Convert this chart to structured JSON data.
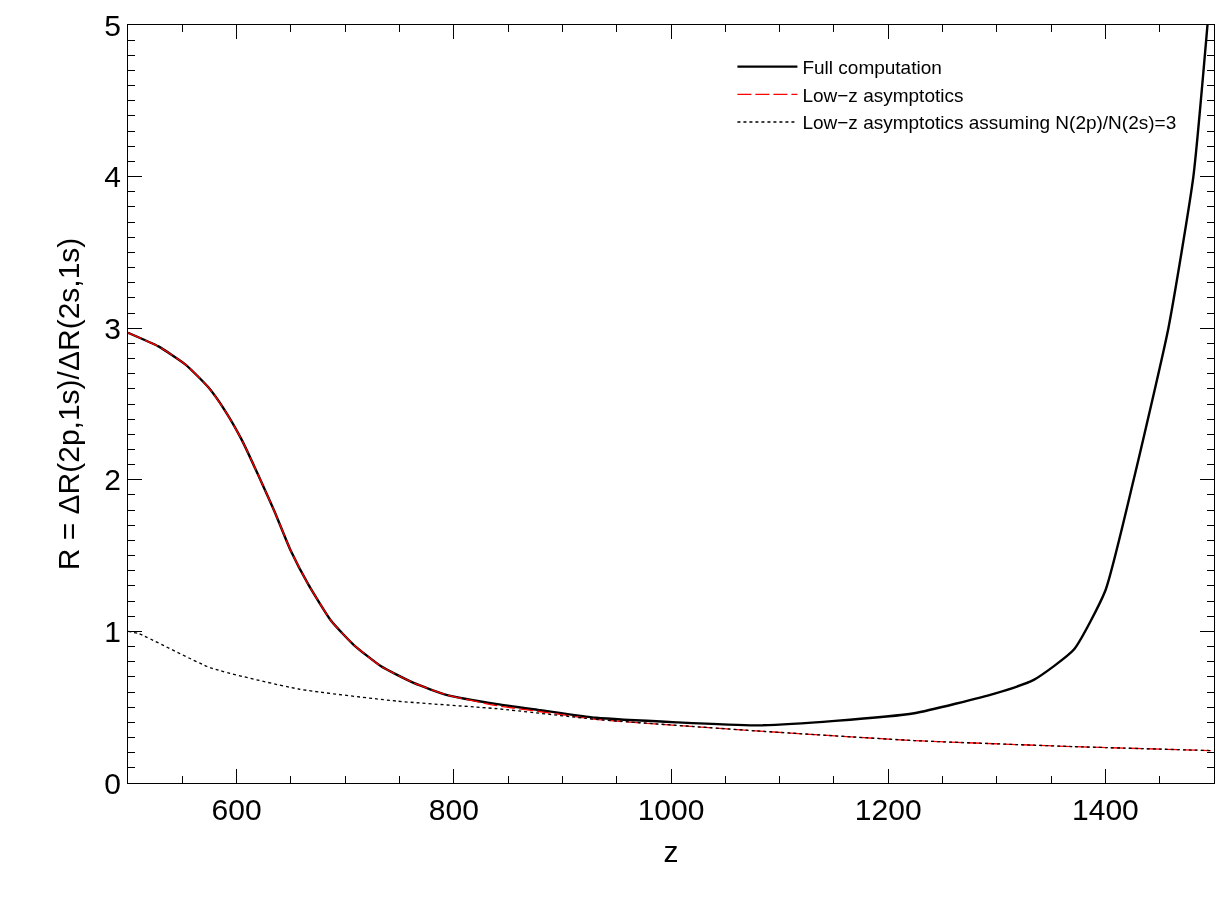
{
  "chart_data": {
    "type": "line",
    "xlabel": "z",
    "ylabel": "R = ΔR(2p,1s)/ΔR(2s,1s)",
    "xlim": [
      500,
      1500
    ],
    "ylim": [
      0,
      5
    ],
    "xticks": [
      600,
      800,
      1000,
      1200,
      1400
    ],
    "yticks": [
      0,
      1,
      2,
      3,
      4,
      5
    ],
    "legend": "top right",
    "series": [
      {
        "name": "Full computation",
        "color": "#000000",
        "line_style": "solid",
        "x": [
          500,
          528,
          553,
          574,
          589,
          605,
          620,
          635,
          650,
          666,
          687,
          708,
          733,
          763,
          794,
          840,
          880,
          931,
          1005,
          1078,
          1151,
          1224,
          1298,
          1334,
          1371,
          1400,
          1426,
          1458,
          1481,
          1494
        ],
        "values": [
          2.97,
          2.88,
          2.76,
          2.61,
          2.46,
          2.26,
          2.03,
          1.79,
          1.53,
          1.31,
          1.07,
          0.91,
          0.77,
          0.66,
          0.58,
          0.52,
          0.48,
          0.43,
          0.4,
          0.38,
          0.41,
          0.46,
          0.59,
          0.68,
          0.88,
          1.27,
          2.0,
          3.0,
          4.0,
          5.0
        ]
      },
      {
        "name": "Low−z asymptotics",
        "color": "#ff0000",
        "line_style": "dashed",
        "x": [
          500,
          528,
          553,
          574,
          589,
          605,
          620,
          635,
          650,
          666,
          687,
          708,
          733,
          763,
          794,
          840,
          880,
          931,
          1078,
          1224,
          1371,
          1497
        ],
        "values": [
          2.97,
          2.88,
          2.76,
          2.61,
          2.46,
          2.26,
          2.03,
          1.79,
          1.53,
          1.31,
          1.07,
          0.91,
          0.77,
          0.66,
          0.58,
          0.51,
          0.47,
          0.42,
          0.344,
          0.28,
          0.24,
          0.214
        ]
      },
      {
        "name": "Low−z asymptotics assuming N(2p)/N(2s)=3",
        "color": "#000000",
        "line_style": "dotted",
        "x": [
          500,
          510,
          576,
          657,
          748,
          840,
          931,
          1078,
          1224,
          1371,
          1497
        ],
        "values": [
          1.0,
          0.985,
          0.76,
          0.62,
          0.54,
          0.49,
          0.42,
          0.344,
          0.28,
          0.24,
          0.214
        ]
      }
    ]
  }
}
